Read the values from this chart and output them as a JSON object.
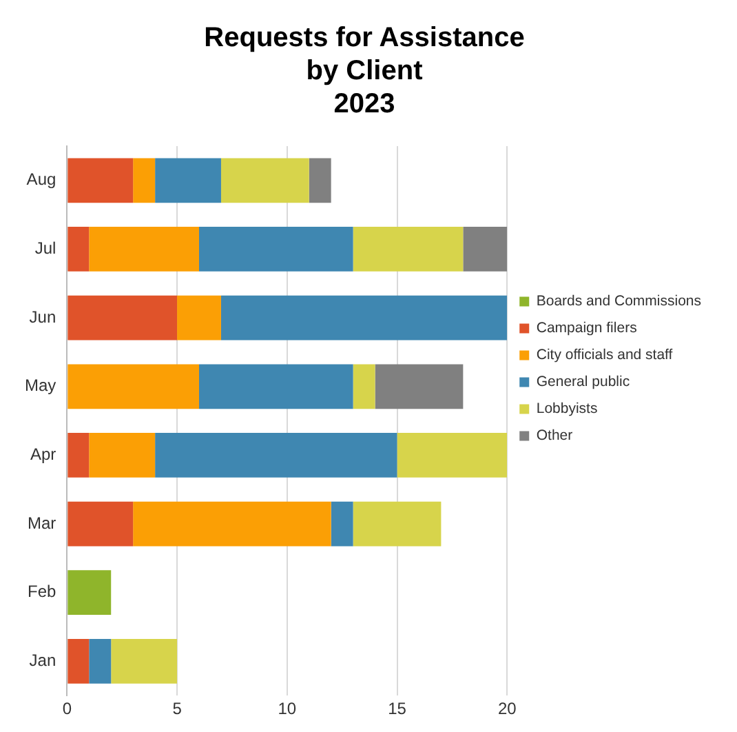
{
  "chart_data": {
    "type": "bar",
    "orientation": "horizontal",
    "stacked": true,
    "title": "Requests for Assistance\nby Client\n2023",
    "categories": [
      "Aug",
      "Jul",
      "Jun",
      "May",
      "Apr",
      "Mar",
      "Feb",
      "Jan"
    ],
    "series": [
      {
        "name": "Boards and Commissions",
        "color": "#8fb52b",
        "values": [
          0,
          0,
          0,
          0,
          0,
          0,
          2,
          0
        ]
      },
      {
        "name": "Campaign filers",
        "color": "#e0532a",
        "values": [
          3,
          1,
          5,
          0,
          1,
          3,
          0,
          1
        ]
      },
      {
        "name": "City officials and staff",
        "color": "#fb9f05",
        "values": [
          1,
          5,
          2,
          6,
          3,
          9,
          0,
          0
        ]
      },
      {
        "name": "General public",
        "color": "#3f87b1",
        "values": [
          3,
          7,
          13,
          7,
          11,
          1,
          0,
          1
        ]
      },
      {
        "name": "Lobbyists",
        "color": "#d7d44b",
        "values": [
          4,
          5,
          0,
          1,
          5,
          4,
          0,
          3
        ]
      },
      {
        "name": "Other",
        "color": "#808080",
        "values": [
          1,
          2,
          0,
          4,
          0,
          0,
          0,
          0
        ]
      }
    ],
    "xlim": [
      0,
      20
    ],
    "xticks": [
      0,
      5,
      10,
      15,
      20
    ],
    "grid": "x",
    "legend": "right"
  }
}
